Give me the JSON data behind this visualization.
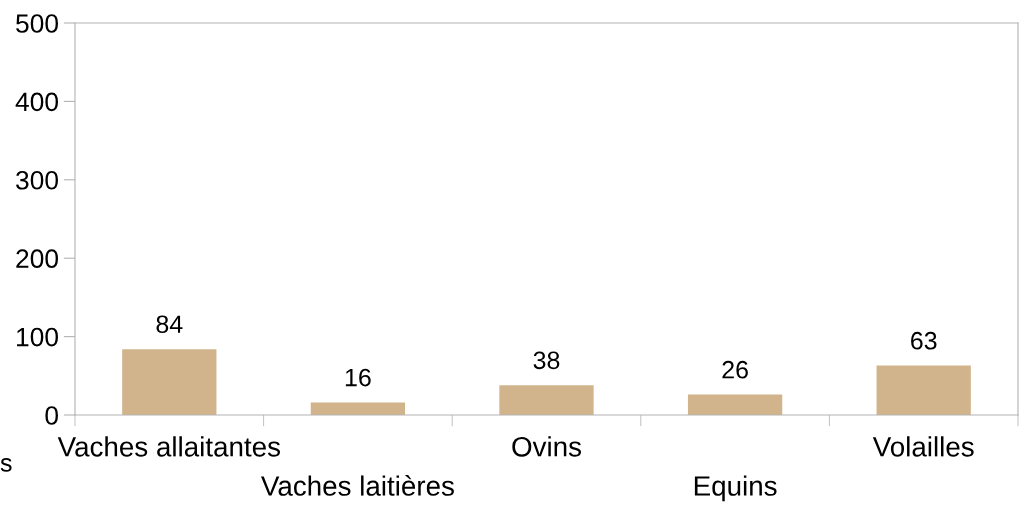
{
  "chart_data": {
    "type": "bar",
    "categories": [
      "Vaches allaitantes",
      "Vaches laitières",
      "Ovins",
      "Equins",
      "Volailles"
    ],
    "values": [
      84,
      16,
      38,
      26,
      63
    ],
    "color": "#d2b48c",
    "ylim": [
      0,
      500
    ],
    "yticks": [
      0,
      100,
      200,
      300,
      400,
      500
    ],
    "grid": false,
    "data_labels": true,
    "annotations": [
      "s"
    ]
  }
}
